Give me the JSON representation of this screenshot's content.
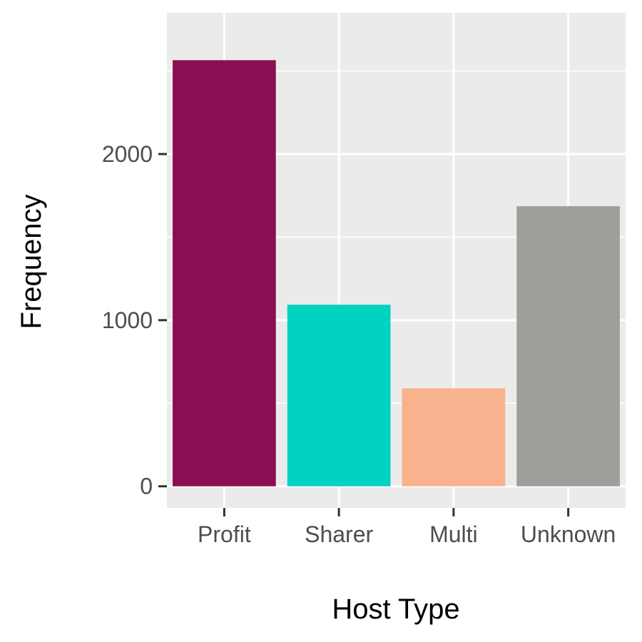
{
  "chart_data": {
    "type": "bar",
    "categories": [
      "Profit",
      "Sharer",
      "Multi",
      "Unknown"
    ],
    "values": [
      2565,
      1093,
      590,
      1686
    ],
    "colors": [
      "#8B0E53",
      "#02D3C0",
      "#F8B28D",
      "#9D9F9A"
    ],
    "xlabel": "Host Type",
    "ylabel": "Frequency",
    "ylim": [
      -130,
      2850
    ],
    "yticks": [
      0,
      1000,
      2000
    ],
    "minor_yticks": [
      500,
      1500,
      2500
    ],
    "grid": true,
    "legend": "none"
  }
}
